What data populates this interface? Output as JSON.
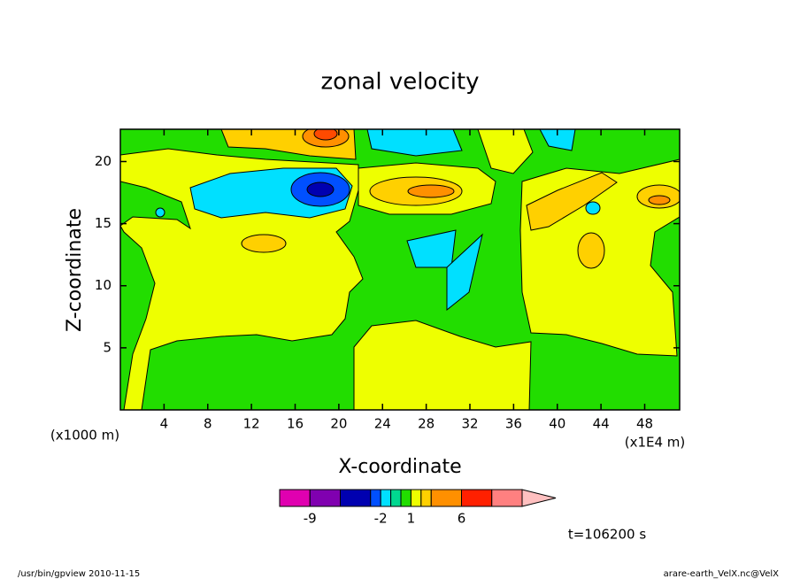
{
  "chart_data": {
    "type": "contour",
    "title": "zonal velocity",
    "x_label": "X-coordinate",
    "y_label": "Z-coordinate",
    "y_unit": "(x1000 m)",
    "x_unit": "(x1E4 m)",
    "xlim": [
      0,
      51.2
    ],
    "ylim": [
      0,
      22.6
    ],
    "xticks": [
      4,
      8,
      12,
      16,
      20,
      24,
      28,
      32,
      36,
      40,
      44,
      48
    ],
    "yticks": [
      5,
      10,
      15,
      20
    ],
    "colorbar": {
      "boundaries": [
        -12,
        -9,
        -6,
        -3,
        -2,
        -1,
        0,
        1,
        2,
        3,
        6,
        9,
        12
      ],
      "colors": [
        "#e000b0",
        "#8000b0",
        "#0000b0",
        "#0050ff",
        "#00e0ff",
        "#00d890",
        "#22dd00",
        "#eeff00",
        "#ffd000",
        "#ff9000",
        "#ff2000",
        "#ff8080",
        "#ffc0c0"
      ],
      "ticks": [
        -9,
        -2,
        1,
        6
      ]
    },
    "time_label": "t=106200 s"
  },
  "footer": {
    "left": "/usr/bin/gpview  2010-11-15",
    "right": "arare-earth_VelX.nc@VelX"
  }
}
